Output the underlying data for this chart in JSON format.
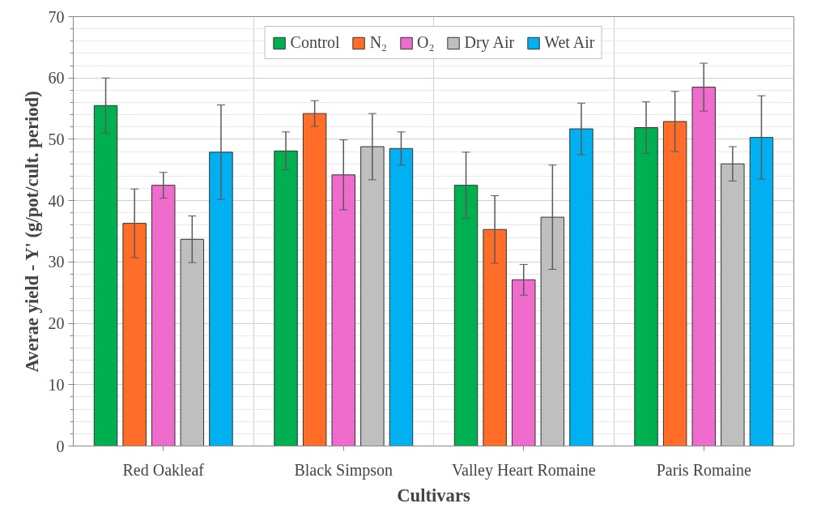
{
  "chart_data": {
    "type": "bar",
    "xlabel": "Cultivars",
    "ylabel": "Averae yield - Y' (g/pot/cult. period)",
    "categories": [
      "Red Oakleaf",
      "Black Simpson",
      "Valley Heart Romaine",
      "Paris Romaine"
    ],
    "series": [
      {
        "name": "Control",
        "color": "#00b050",
        "values": [
          55.5,
          48.1,
          42.5,
          51.9
        ],
        "errors": [
          4.5,
          3.1,
          5.4,
          4.2
        ]
      },
      {
        "name": "N₂",
        "color": "#ff6d28",
        "values": [
          36.3,
          54.2,
          35.3,
          52.9
        ],
        "errors": [
          5.6,
          2.1,
          5.5,
          4.9
        ]
      },
      {
        "name": "O₂",
        "color": "#f06ccc",
        "values": [
          42.5,
          44.2,
          27.1,
          58.5
        ],
        "errors": [
          2.1,
          5.7,
          2.5,
          3.9
        ]
      },
      {
        "name": "Dry Air",
        "color": "#bfbfbf",
        "values": [
          33.7,
          48.8,
          37.3,
          46.0
        ],
        "errors": [
          3.8,
          5.4,
          8.5,
          2.8
        ]
      },
      {
        "name": "Wet Air",
        "color": "#00b0f0",
        "values": [
          47.9,
          48.5,
          51.7,
          50.3
        ],
        "errors": [
          7.7,
          2.7,
          4.2,
          6.8
        ]
      }
    ],
    "ylim": [
      0,
      70
    ],
    "yticks": [
      0,
      10,
      20,
      30,
      40,
      50,
      60,
      70
    ],
    "grid": true,
    "legend": "top"
  }
}
